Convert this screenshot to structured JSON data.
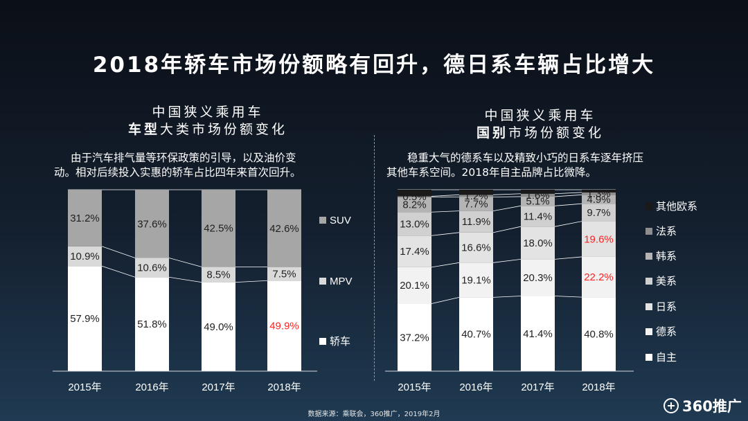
{
  "title": "2018年轿车市场份额略有回升，德日系车辆占比增大",
  "left": {
    "subtitle_line1": "中国狭义乘用车",
    "subtitle_bold": "车型",
    "subtitle_rest": "大类市场份额变化",
    "desc_line1": "由于汽车排气量等环保政策的引导，以及油价变",
    "desc_line2": "动。相对后续投入实惠的轿车占比四年来首次回升。"
  },
  "right": {
    "subtitle_line1": "中国狭义乘用车",
    "subtitle_bold": "国别",
    "subtitle_rest": "市场份额变化",
    "desc_line1": "稳重大气的德系车以及精致小巧的日系车逐年挤压",
    "desc_line2": "其他车系空间。2018年自主品牌占比微降。"
  },
  "chart_data": [
    {
      "type": "bar",
      "stacked": true,
      "percent": true,
      "title": "中国狭义乘用车车型大类市场份额变化",
      "categories": [
        "2015年",
        "2016年",
        "2017年",
        "2018年"
      ],
      "series": [
        {
          "name": "轿车",
          "color": "#ffffff",
          "values": [
            57.9,
            51.8,
            49.0,
            49.9
          ],
          "labels": [
            "57.9%",
            "51.8%",
            "49.0%",
            "49.9%"
          ]
        },
        {
          "name": "MPV",
          "color": "#d9d9d9",
          "values": [
            10.9,
            10.6,
            8.5,
            7.5
          ],
          "labels": [
            "10.9%",
            "10.6%",
            "8.5%",
            "7.5%"
          ]
        },
        {
          "name": "SUV",
          "color": "#a6a6a6",
          "values": [
            31.2,
            37.6,
            42.5,
            42.6
          ],
          "labels": [
            "31.2%",
            "37.6%",
            "42.5%",
            "42.6%"
          ]
        }
      ],
      "highlight": {
        "series": "轿车",
        "category": "2018年",
        "color": "#ff2020"
      },
      "legend": [
        "SUV",
        "MPV",
        "轿车"
      ],
      "legend_position": "right"
    },
    {
      "type": "bar",
      "stacked": true,
      "percent": true,
      "title": "中国狭义乘用车国别市场份额变化",
      "categories": [
        "2015年",
        "2016年",
        "2017年",
        "2018年"
      ],
      "series": [
        {
          "name": "自主",
          "color": "#ffffff",
          "values": [
            37.2,
            40.7,
            41.4,
            40.8
          ],
          "labels": [
            "37.2%",
            "40.7%",
            "41.4%",
            "40.8%"
          ]
        },
        {
          "name": "德系",
          "color": "#f2f2f2",
          "values": [
            20.1,
            19.1,
            20.3,
            22.2
          ],
          "labels": [
            "20.1%",
            "19.1%",
            "20.3%",
            "22.2%"
          ]
        },
        {
          "name": "日系",
          "color": "#e3e3e3",
          "values": [
            17.4,
            16.6,
            18.0,
            19.6
          ],
          "labels": [
            "17.4%",
            "16.6%",
            "18.0%",
            "19.6%"
          ]
        },
        {
          "name": "美系",
          "color": "#d0d0d0",
          "values": [
            13.0,
            11.9,
            11.4,
            9.7
          ],
          "labels": [
            "13.0%",
            "11.9%",
            "11.4%",
            "9.7%"
          ]
        },
        {
          "name": "韩系",
          "color": "#b4b4b4",
          "values": [
            8.2,
            7.7,
            5.1,
            4.9
          ],
          "labels": [
            "8.2%",
            "7.7%",
            "5.1%",
            "4.9%"
          ]
        },
        {
          "name": "法系",
          "color": "#8e8e8e",
          "values": [
            0.5,
            1.2,
            1.6,
            1.3
          ],
          "labels": [
            "0.5%",
            "1.2%",
            "1.6%",
            "1.3%"
          ]
        },
        {
          "name": "其他欧系",
          "color": "#1a1a1a",
          "values": [
            3.6,
            2.8,
            2.2,
            1.5
          ]
        }
      ],
      "highlight": [
        {
          "series": "德系",
          "category": "2018年",
          "color": "#ff2020"
        },
        {
          "series": "日系",
          "category": "2018年",
          "color": "#ff2020"
        }
      ],
      "legend": [
        "其他欧系",
        "法系",
        "韩系",
        "美系",
        "日系",
        "德系",
        "自主"
      ],
      "legend_position": "right"
    }
  ],
  "source": "数据来源：乘联会，360推广，2019年2月",
  "logo": "360推广"
}
